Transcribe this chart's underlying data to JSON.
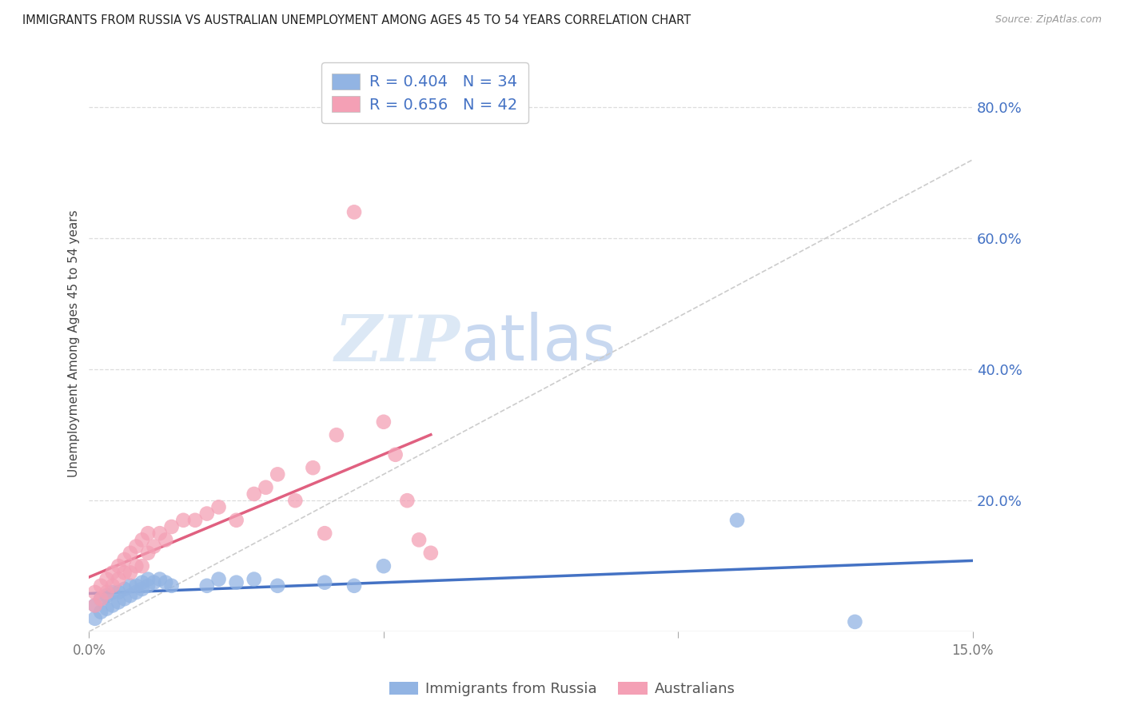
{
  "title": "IMMIGRANTS FROM RUSSIA VS AUSTRALIAN UNEMPLOYMENT AMONG AGES 45 TO 54 YEARS CORRELATION CHART",
  "source": "Source: ZipAtlas.com",
  "ylabel": "Unemployment Among Ages 45 to 54 years",
  "legend_series1": "Immigrants from Russia",
  "legend_series2": "Australians",
  "r1": 0.404,
  "n1": 34,
  "r2": 0.656,
  "n2": 42,
  "color1": "#92b4e3",
  "color2": "#f4a0b5",
  "trendline1_color": "#4472c4",
  "trendline2_color": "#e06080",
  "diag_line_color": "#cccccc",
  "xlim": [
    0.0,
    0.15
  ],
  "ylim": [
    0.0,
    0.88
  ],
  "y_ticks_right": [
    0.0,
    0.2,
    0.4,
    0.6,
    0.8
  ],
  "y_tick_labels_right": [
    "",
    "20.0%",
    "40.0%",
    "60.0%",
    "80.0%"
  ],
  "blue_x": [
    0.001,
    0.001,
    0.002,
    0.002,
    0.003,
    0.003,
    0.004,
    0.004,
    0.005,
    0.005,
    0.006,
    0.006,
    0.007,
    0.007,
    0.008,
    0.008,
    0.009,
    0.009,
    0.01,
    0.01,
    0.011,
    0.012,
    0.013,
    0.014,
    0.02,
    0.022,
    0.025,
    0.028,
    0.032,
    0.04,
    0.045,
    0.05,
    0.11,
    0.13
  ],
  "blue_y": [
    0.02,
    0.04,
    0.03,
    0.05,
    0.035,
    0.055,
    0.04,
    0.06,
    0.045,
    0.06,
    0.05,
    0.065,
    0.055,
    0.07,
    0.06,
    0.07,
    0.065,
    0.075,
    0.07,
    0.08,
    0.075,
    0.08,
    0.075,
    0.07,
    0.07,
    0.08,
    0.075,
    0.08,
    0.07,
    0.075,
    0.07,
    0.1,
    0.17,
    0.015
  ],
  "pink_x": [
    0.001,
    0.001,
    0.002,
    0.002,
    0.003,
    0.003,
    0.004,
    0.004,
    0.005,
    0.005,
    0.006,
    0.006,
    0.007,
    0.007,
    0.008,
    0.008,
    0.009,
    0.009,
    0.01,
    0.01,
    0.011,
    0.012,
    0.013,
    0.014,
    0.016,
    0.018,
    0.02,
    0.022,
    0.025,
    0.028,
    0.03,
    0.032,
    0.035,
    0.038,
    0.04,
    0.042,
    0.045,
    0.05,
    0.052,
    0.054,
    0.056,
    0.058
  ],
  "pink_y": [
    0.04,
    0.06,
    0.05,
    0.07,
    0.06,
    0.08,
    0.07,
    0.09,
    0.08,
    0.1,
    0.09,
    0.11,
    0.09,
    0.12,
    0.1,
    0.13,
    0.1,
    0.14,
    0.12,
    0.15,
    0.13,
    0.15,
    0.14,
    0.16,
    0.17,
    0.17,
    0.18,
    0.19,
    0.17,
    0.21,
    0.22,
    0.24,
    0.2,
    0.25,
    0.15,
    0.3,
    0.64,
    0.32,
    0.27,
    0.2,
    0.14,
    0.12
  ],
  "background_color": "#ffffff",
  "grid_color": "#dddddd",
  "title_color": "#222222",
  "axis_label_color": "#444444",
  "right_axis_color": "#4472c4",
  "watermark_zip": "ZIP",
  "watermark_atlas": "atlas",
  "watermark_color_zip": "#dce8f5",
  "watermark_color_atlas": "#c8d8f0",
  "diag_slope": 4.8
}
